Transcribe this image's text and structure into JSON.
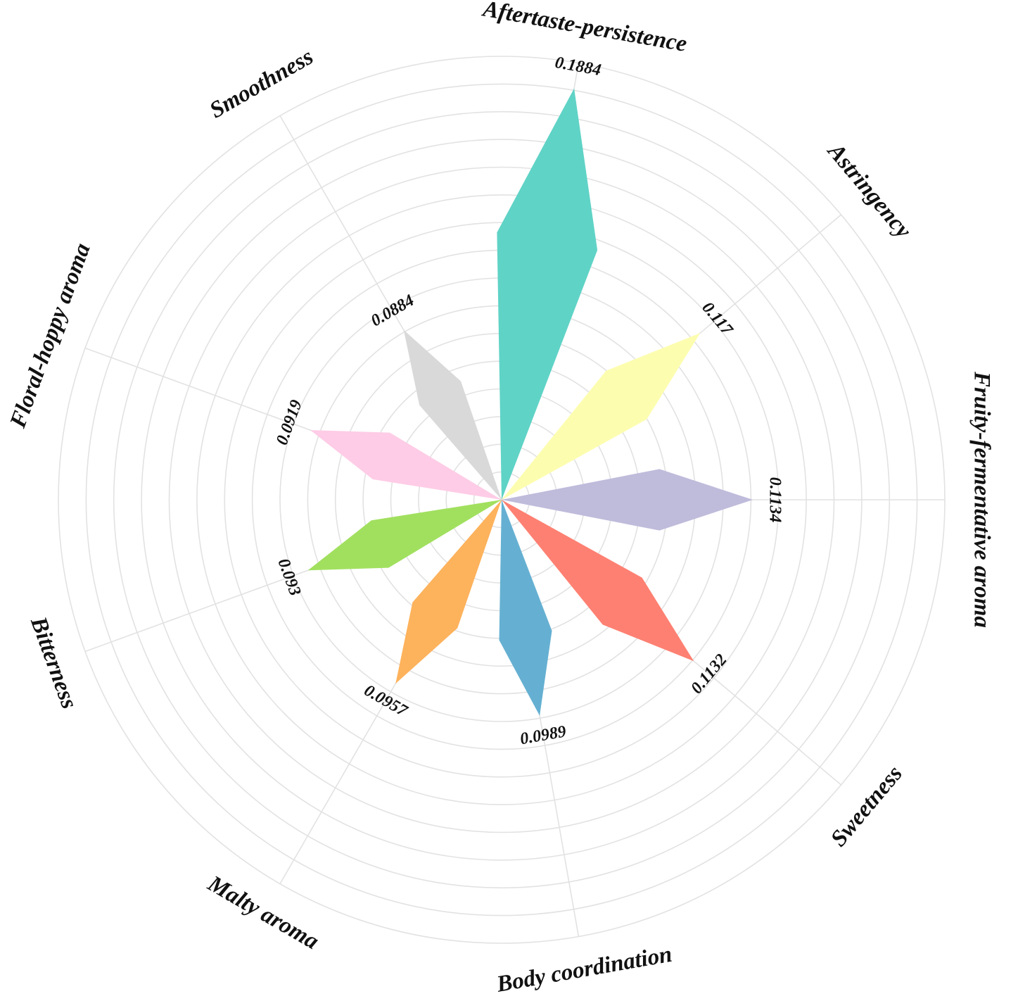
{
  "chart_data": {
    "type": "polar-petal",
    "categories": [
      "Aftertaste-persistence",
      "Astringency",
      "Fruity-fermentative aroma",
      "Sweetness",
      "Body coordination",
      "Malty aroma",
      "Bitterness",
      "Floral-hoppy aroma",
      "Smoothness"
    ],
    "values": [
      0.1884,
      0.117,
      0.1134,
      0.1132,
      0.0989,
      0.0957,
      0.093,
      0.0919,
      0.0884
    ],
    "value_labels": [
      "0.1884",
      "0.117",
      "0.1134",
      "0.1132",
      "0.0989",
      "0.0957",
      "0.093",
      "0.0919",
      "0.0884"
    ],
    "colors": [
      "#5fd3c6",
      "#fdfdb0",
      "#bfbbdb",
      "#fe8072",
      "#65b0d2",
      "#fdb25c",
      "#a1e05f",
      "#fecce6",
      "#d9d9d9"
    ],
    "rmax": 0.2,
    "grid": true,
    "legend": "none"
  }
}
